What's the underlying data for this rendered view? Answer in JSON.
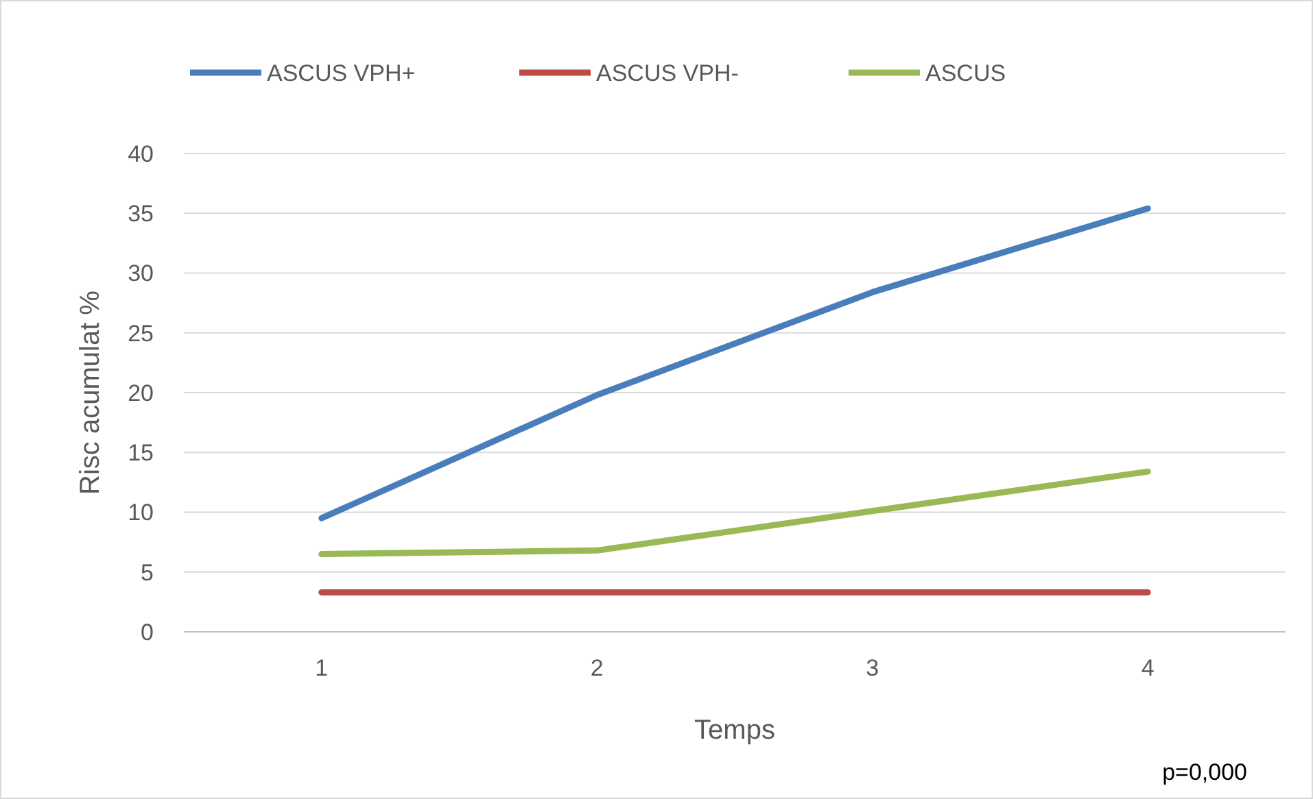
{
  "chart_data": {
    "type": "line",
    "xlabel": "Temps",
    "ylabel": "Risc acumulat %",
    "categories": [
      "1",
      "2",
      "3",
      "4"
    ],
    "series": [
      {
        "name": "ASCUS VPH+",
        "color": "#4a7ebb",
        "values": [
          9.5,
          19.8,
          28.4,
          35.4
        ]
      },
      {
        "name": "ASCUS VPH-",
        "color": "#be4b48",
        "values": [
          3.3,
          3.3,
          3.3,
          3.3
        ]
      },
      {
        "name": "ASCUS",
        "color": "#98b954",
        "values": [
          6.5,
          6.8,
          10.1,
          13.4
        ]
      }
    ],
    "ylim": [
      0,
      40
    ],
    "yticks": [
      0,
      5,
      10,
      15,
      20,
      25,
      30,
      35,
      40
    ],
    "grid": "y",
    "legend": "top",
    "marker": "none",
    "line_style": "solid",
    "annotations": [
      "p=0,000"
    ]
  }
}
